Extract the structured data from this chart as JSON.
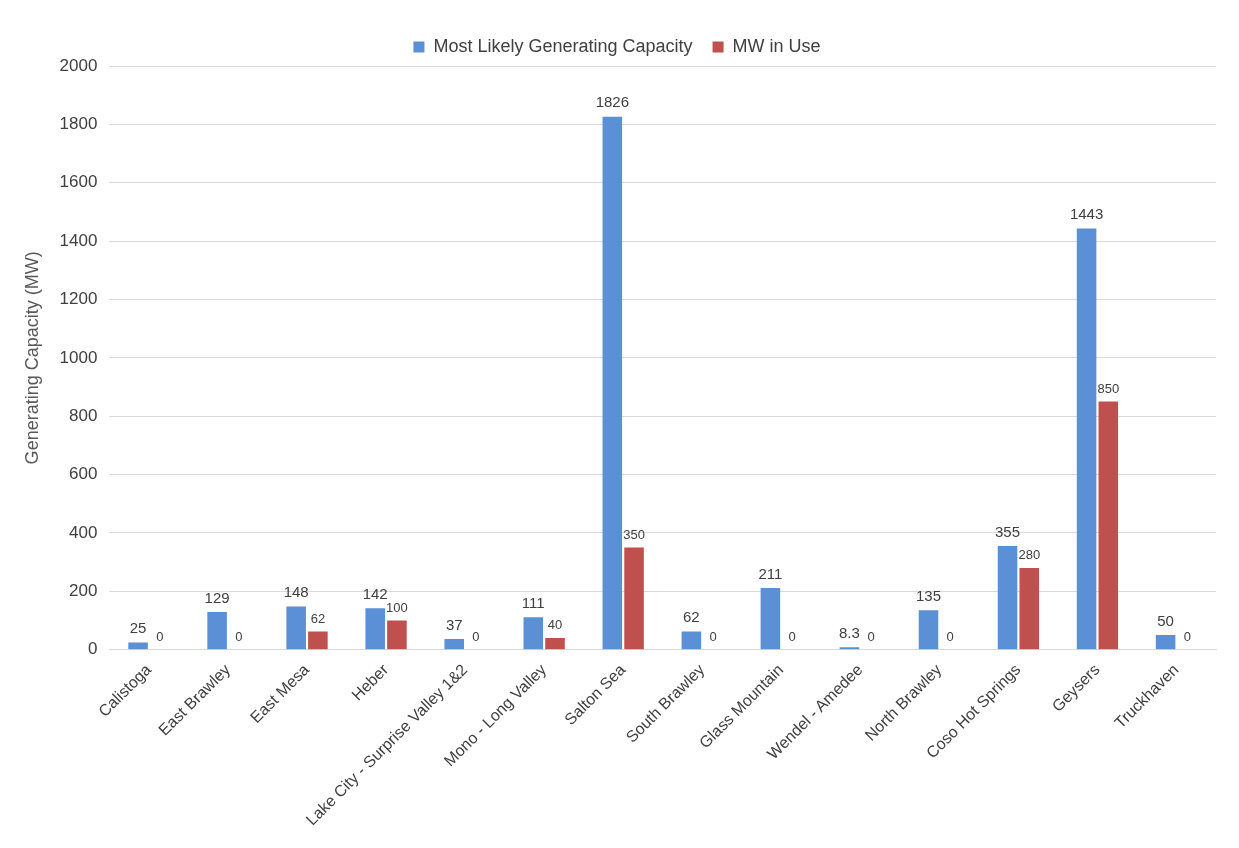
{
  "chart_data": {
    "type": "bar",
    "ylabel": "Generating Capacity (MW)",
    "categories": [
      "Calistoga",
      "East Brawley",
      "East Mesa",
      "Heber",
      "Lake City - Surprise Valley 1&2",
      "Mono - Long Valley",
      "Salton Sea",
      "South Brawley",
      "Glass Mountain",
      "Wendel - Amedee",
      "North Brawley",
      "Coso Hot Springs",
      "Geysers",
      "Truckhaven"
    ],
    "series": [
      {
        "name": "Most Likely Generating Capacity",
        "color": "#5b8fd6",
        "values": [
          25,
          129,
          148,
          142,
          37,
          111,
          1826,
          62,
          211,
          8.3,
          135,
          355,
          1443,
          50
        ]
      },
      {
        "name": "MW in Use",
        "color": "#c0504d",
        "values": [
          0,
          0,
          62,
          100,
          0,
          40,
          350,
          0,
          0,
          0,
          0,
          280,
          850,
          0
        ]
      }
    ],
    "ylim": [
      0,
      2000
    ],
    "yticks": [
      0,
      200,
      400,
      600,
      800,
      1000,
      1200,
      1400,
      1600,
      1800,
      2000
    ],
    "grid": "y",
    "legend": "top",
    "data_labels": true
  }
}
